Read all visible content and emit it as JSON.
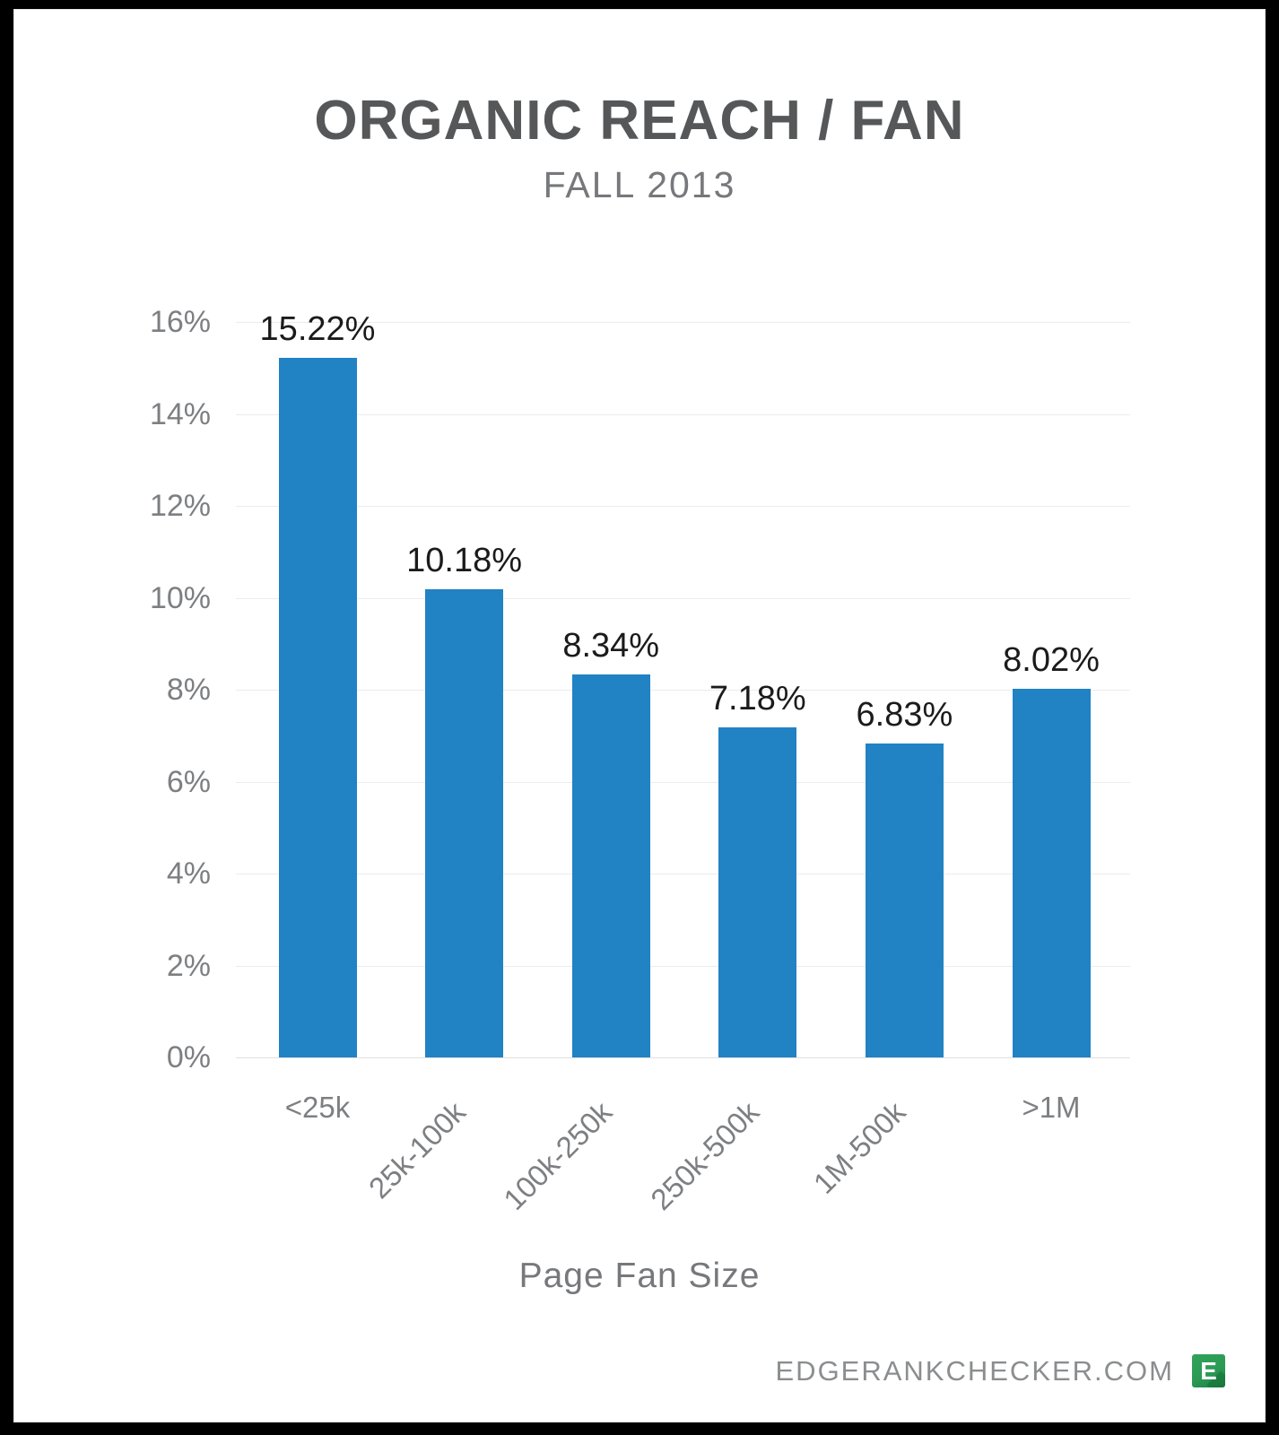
{
  "page": {
    "title": "ORGANIC REACH / FAN",
    "subtitle": "FALL 2013"
  },
  "footer": {
    "site": "EDGERANKCHECKER.COM",
    "logo_letter": "E",
    "logo_color": "#2c9a54"
  },
  "chart_data": {
    "type": "bar",
    "title": "ORGANIC REACH / FAN",
    "subtitle": "FALL 2013",
    "categories": [
      "<25k",
      "25k-100k",
      "100k-250k",
      "250k-500k",
      "1M-500k",
      ">1M"
    ],
    "values": [
      15.22,
      10.18,
      8.34,
      7.18,
      6.83,
      8.02
    ],
    "value_labels": [
      "15.22%",
      "10.18%",
      "8.34%",
      "7.18%",
      "6.83%",
      "8.02%"
    ],
    "rotated_labels": [
      false,
      true,
      true,
      true,
      true,
      false
    ],
    "xlabel": "Page Fan Size",
    "ylabel": "",
    "ylim": [
      0,
      16
    ],
    "ytick_step": 2,
    "ytick_labels": [
      "0%",
      "2%",
      "4%",
      "6%",
      "8%",
      "10%",
      "12%",
      "14%",
      "16%"
    ],
    "grid": true,
    "legend": "none",
    "bar_color": "#2182c4",
    "value_label_color": "#1b1b1b",
    "axis_label_color": "#7d7f82"
  }
}
